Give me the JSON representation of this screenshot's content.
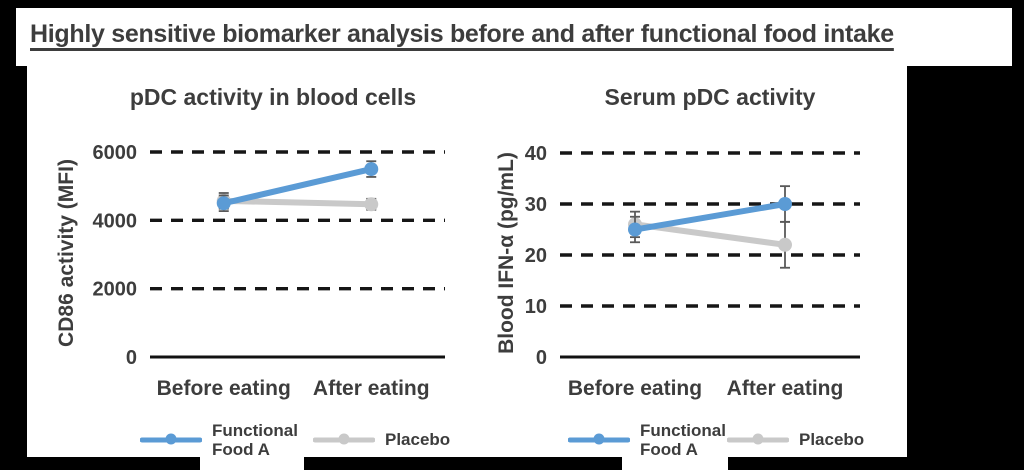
{
  "page": {
    "title": "Highly sensitive biomarker analysis before and after functional food intake"
  },
  "colors": {
    "background": "#000000",
    "panel": "#ffffff",
    "text": "#3d3d3d",
    "gridline": "#161616",
    "axis": "#111111",
    "error_bar": "#595959",
    "functional_food_a": "#5b9bd5",
    "placebo": "#c9c9c9"
  },
  "chart_data": [
    {
      "type": "line",
      "title": "pDC activity in blood cells",
      "ylabel": "CD86 activity (MFI)",
      "xlabel": "",
      "categories": [
        "Before eating",
        "After eating"
      ],
      "yticks": [
        6000,
        4000,
        2000,
        0
      ],
      "ylim": [
        0,
        6000
      ],
      "grid": "horizontal-dashed",
      "legend_position": "bottom",
      "series": [
        {
          "name": "Functional Food A",
          "color": "#5b9bd5",
          "values": [
            4500,
            5500
          ],
          "error": [
            230,
            230
          ]
        },
        {
          "name": "Placebo",
          "color": "#c9c9c9",
          "values": [
            4570,
            4470
          ],
          "error": [
            230,
            160
          ]
        }
      ]
    },
    {
      "type": "line",
      "title": "Serum pDC activity",
      "ylabel": "Blood IFN-α (pg/mL)",
      "xlabel": "",
      "categories": [
        "Before eating",
        "After eating"
      ],
      "yticks": [
        40,
        30,
        20,
        10,
        0
      ],
      "ylim": [
        0,
        40
      ],
      "grid": "horizontal-dashed",
      "legend_position": "bottom",
      "series": [
        {
          "name": "Functional Food A",
          "color": "#5b9bd5",
          "values": [
            25,
            30
          ],
          "error": [
            2.5,
            3.5
          ]
        },
        {
          "name": "Placebo",
          "color": "#c9c9c9",
          "values": [
            26,
            22
          ],
          "error": [
            2.5,
            4.5
          ]
        }
      ]
    }
  ]
}
